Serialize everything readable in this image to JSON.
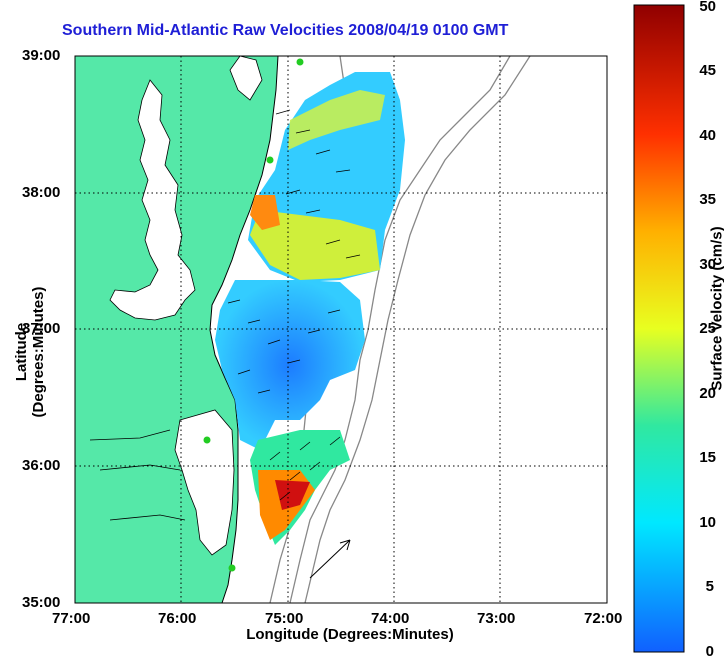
{
  "title": "Southern Mid-Atlantic Raw Velocities 2008/04/19 0100 GMT",
  "axes": {
    "xlabel": "Longitude (Degrees:Minutes)",
    "ylabel": "Latitude (Degrees:Minutes)",
    "xticks": [
      "77:00",
      "76:00",
      "75:00",
      "74:00",
      "73:00",
      "72:00"
    ],
    "yticks": [
      "39:00",
      "38:00",
      "37:00",
      "36:00",
      "35:00"
    ],
    "xlim": [
      -77,
      -72
    ],
    "ylim": [
      35,
      39
    ]
  },
  "colorbar": {
    "label": "Surface Velocity (cm/s)",
    "ticks": [
      "50",
      "45",
      "40",
      "35",
      "30",
      "25",
      "20",
      "15",
      "10",
      "5",
      "0"
    ],
    "range": [
      0,
      50
    ]
  },
  "colors": {
    "land": "#55e8a8",
    "title": "#1f1fd6",
    "coast": "#000000",
    "bathy": "#888888"
  }
}
